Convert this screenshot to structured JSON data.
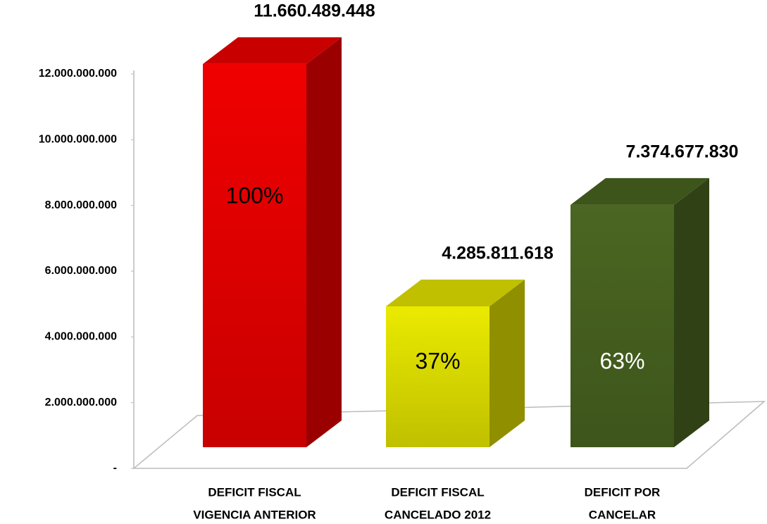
{
  "chart_data": {
    "type": "bar3d",
    "categories": [
      [
        "DEFICIT FISCAL",
        "VIGENCIA ANTERIOR"
      ],
      [
        "DEFICIT FISCAL",
        "CANCELADO 2012"
      ],
      [
        "DEFICIT POR",
        "CANCELAR"
      ]
    ],
    "values": [
      11660489448,
      4285811618,
      7374677830
    ],
    "value_labels": [
      "11.660.489.448",
      "4.285.811.618",
      "7.374.677.830"
    ],
    "annotations": [
      "100%",
      "37%",
      "63%"
    ],
    "colors": [
      [
        "#f00000",
        "#9a0000",
        "#c80000"
      ],
      [
        "#eaea00",
        "#8f8f00",
        "#c0c000"
      ],
      [
        "#4b6622",
        "#2f4115",
        "#3d551b"
      ]
    ],
    "annotation_colors": [
      "#000000",
      "#000000",
      "#ffffff"
    ],
    "ylim": [
      0,
      12000000000
    ],
    "yticks": [
      {
        "value": 0,
        "label": "-"
      },
      {
        "value": 2000000000,
        "label": "2.000.000.000"
      },
      {
        "value": 4000000000,
        "label": "4.000.000.000"
      },
      {
        "value": 6000000000,
        "label": "6.000.000.000"
      },
      {
        "value": 8000000000,
        "label": "8.000.000.000"
      },
      {
        "value": 10000000000,
        "label": "10.000.000.000"
      },
      {
        "value": 12000000000,
        "label": "12.000.000.000"
      }
    ]
  }
}
